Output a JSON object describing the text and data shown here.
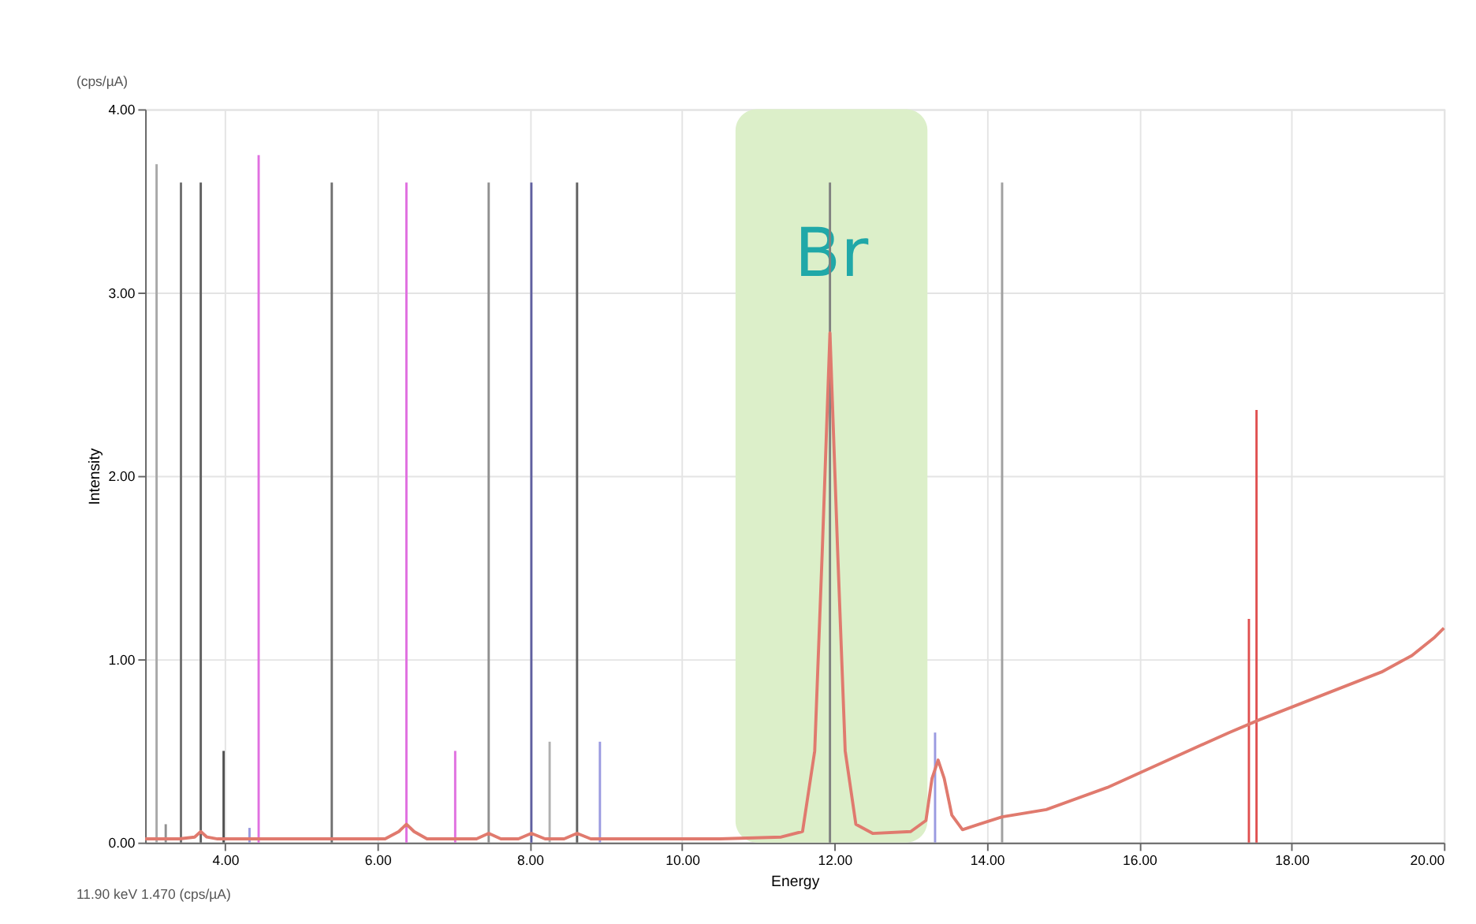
{
  "chart_data": {
    "type": "line",
    "xlabel": "Energy",
    "ylabel": "Intensity",
    "xlim": [
      2.95,
      20
    ],
    "ylim": [
      0,
      4
    ],
    "xticks": [
      {
        "value": 4,
        "label": "4.00"
      },
      {
        "value": 6,
        "label": "6.00"
      },
      {
        "value": 8,
        "label": "8.00"
      },
      {
        "value": 10,
        "label": "10.00"
      },
      {
        "value": 12,
        "label": "12.00"
      },
      {
        "value": 14,
        "label": "14.00"
      },
      {
        "value": 16,
        "label": "16.00"
      },
      {
        "value": 18,
        "label": "18.00"
      },
      {
        "value": 20,
        "label": "20.00"
      }
    ],
    "yticks": [
      {
        "value": 0,
        "label": "0.00"
      },
      {
        "value": 1,
        "label": "1.00"
      },
      {
        "value": 2,
        "label": "2.00"
      },
      {
        "value": 3,
        "label": "3.00"
      },
      {
        "value": 4,
        "label": "4.00"
      }
    ],
    "grid": true,
    "series": [
      {
        "type": "bar",
        "x": [
          3.1,
          3.22,
          3.42,
          3.68,
          3.98,
          4.32,
          4.44,
          5.4,
          6.38,
          7.02,
          7.46,
          8.02,
          8.26,
          8.62,
          8.92,
          11.94,
          13.32,
          14.2,
          17.44,
          17.54
        ],
        "values": [
          3.7,
          0.1,
          3.6,
          3.6,
          0.5,
          0.08,
          3.75,
          3.6,
          3.6,
          0.5,
          3.6,
          3.6,
          0.55,
          3.6,
          0.55,
          3.6,
          0.6,
          3.6,
          1.22,
          2.36
        ],
        "colors": [
          "#a8a8a8",
          "#909090",
          "#707070",
          "#606060",
          "#505050",
          "#9a9ae0",
          "#e070e0",
          "#707070",
          "#e070e0",
          "#e070e0",
          "#909090",
          "#6060a0",
          "#b0b0b0",
          "#606060",
          "#9a9ae0",
          "#808080",
          "#9a9ae0",
          "#a0a0a0",
          "#e05050",
          "#e05050"
        ]
      },
      {
        "color": "#e07a6e",
        "x": [
          2.95,
          3.4,
          3.6,
          3.68,
          3.76,
          3.9,
          5.0,
          6.1,
          6.28,
          6.38,
          6.48,
          6.65,
          7.3,
          7.46,
          7.62,
          7.85,
          8.02,
          8.2,
          8.45,
          8.62,
          8.8,
          9.5,
          10.5,
          11.3,
          11.58,
          11.74,
          11.84,
          11.94,
          12.04,
          12.14,
          12.28,
          12.5,
          13.0,
          13.2,
          13.28,
          13.36,
          13.44,
          13.54,
          13.68,
          13.9,
          14.2,
          14.78,
          15.58,
          16.38,
          17.18,
          17.58,
          18.38,
          19.18,
          19.58,
          19.88,
          20.0
        ],
        "values": [
          0.02,
          0.02,
          0.03,
          0.06,
          0.03,
          0.02,
          0.02,
          0.02,
          0.06,
          0.1,
          0.06,
          0.02,
          0.02,
          0.05,
          0.02,
          0.02,
          0.05,
          0.02,
          0.02,
          0.05,
          0.02,
          0.02,
          0.02,
          0.03,
          0.06,
          0.5,
          1.6,
          2.78,
          1.6,
          0.5,
          0.1,
          0.05,
          0.06,
          0.12,
          0.35,
          0.45,
          0.35,
          0.15,
          0.07,
          0.1,
          0.14,
          0.18,
          0.3,
          0.45,
          0.6,
          0.67,
          0.8,
          0.93,
          1.02,
          1.12,
          1.17
        ]
      }
    ],
    "bands": [
      {
        "axis": "x",
        "from": 10.7,
        "to": 13.22,
        "label": "Br",
        "color": "#dcefc9"
      }
    ],
    "annotations": [
      "(cps/µA)",
      "11.90 keV 1.470 (cps/µA)"
    ]
  }
}
